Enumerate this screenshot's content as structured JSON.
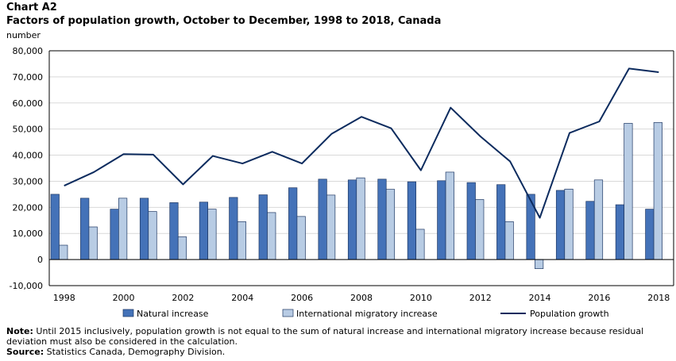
{
  "header": {
    "chart_label": "Chart A2",
    "title": "Factors of population  growth,  October to December, 1998 to 2018, Canada",
    "unit": "number"
  },
  "colors": {
    "natural": "#4472b8",
    "natural_stroke": "#1f3864",
    "international": "#b8cce4",
    "international_stroke": "#1f3864",
    "growth": "#0c2b5e",
    "grid": "#d9d9d9",
    "axis": "#000000"
  },
  "chart_data": {
    "type": "bar",
    "categories": [
      "1998",
      "1999",
      "2000",
      "2001",
      "2002",
      "2003",
      "2004",
      "2005",
      "2006",
      "2007",
      "2008",
      "2009",
      "2010",
      "2011",
      "2012",
      "2013",
      "2014",
      "2015",
      "2016",
      "2017",
      "2018"
    ],
    "x_tick_labels": [
      "1998",
      "",
      "2000",
      "",
      "2002",
      "",
      "2004",
      "",
      "2006",
      "",
      "2008",
      "",
      "2010",
      "",
      "2012",
      "",
      "2014",
      "",
      "2016",
      "",
      "2018"
    ],
    "y_ticks": [
      -10000,
      0,
      10000,
      20000,
      30000,
      40000,
      50000,
      60000,
      70000,
      80000
    ],
    "y_tick_labels": [
      "-10,000",
      "0",
      "10,000",
      "20,000",
      "30,000",
      "40,000",
      "50,000",
      "60,000",
      "70,000",
      "80,000"
    ],
    "ylim": [
      -10000,
      80000
    ],
    "ylabel": "number",
    "grid": true,
    "legend_position": "bottom",
    "series": [
      {
        "name": "Natural increase",
        "kind": "bar",
        "values": [
          25000,
          23500,
          19300,
          23500,
          21800,
          22000,
          23800,
          24800,
          27500,
          30800,
          30500,
          30800,
          29800,
          30200,
          29500,
          28700,
          25000,
          26500,
          22300,
          21000,
          19300
        ]
      },
      {
        "name": "International migratory increase",
        "kind": "bar",
        "values": [
          5500,
          12500,
          23500,
          18400,
          8700,
          19300,
          14500,
          18000,
          16500,
          24700,
          31300,
          26900,
          11600,
          33500,
          23000,
          14500,
          -3500,
          27000,
          30500,
          52200,
          52500
        ]
      },
      {
        "name": "Population growth",
        "kind": "line",
        "values": [
          28300,
          33500,
          40400,
          40200,
          28800,
          39700,
          36800,
          41300,
          36800,
          48200,
          54700,
          50300,
          34200,
          58200,
          47200,
          37600,
          16000,
          48500,
          52900,
          73200,
          71800
        ]
      }
    ]
  },
  "notes": {
    "note_label": "Note:",
    "note_text": " Until 2015 inclusively, population growth is not equal to the sum of natural increase and international migratory increase because residual deviation must also be considered in the calculation.",
    "source_label": "Source:",
    "source_text": " Statistics Canada, Demography Division."
  }
}
